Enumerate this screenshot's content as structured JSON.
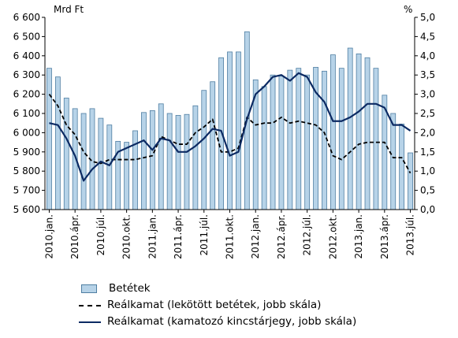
{
  "chart_data": {
    "type": "bar+line",
    "left_axis_unit": "Mrd Ft",
    "right_axis_unit": "%",
    "left_ylim": [
      5600,
      6600
    ],
    "left_ticks": [
      "5 600",
      "5 700",
      "5 800",
      "5 900",
      "6 000",
      "6 100",
      "6 200",
      "6 300",
      "6 400",
      "6 500",
      "6 600"
    ],
    "right_ylim": [
      0,
      5
    ],
    "right_ticks": [
      "0,0",
      "0,5",
      "1,0",
      "1,5",
      "2,0",
      "2,5",
      "3,0",
      "3,5",
      "4,0",
      "4,5",
      "5,0"
    ],
    "x_tick_labels": [
      "2010.jan.",
      "2010.ápr.",
      "2010.júl.",
      "2010.okt.",
      "2011.jan.",
      "2011.ápr.",
      "2011.júl.",
      "2011.okt.",
      "2012.jan.",
      "2012.ápr.",
      "2012.júl.",
      "2012.okt.",
      "2013.jan.",
      "2013.ápr.",
      "2013.júl."
    ],
    "months": 43,
    "series": [
      {
        "name": "Betétek",
        "type": "bar",
        "axis": "left",
        "color": "#b7d3e8",
        "values": [
          6335,
          6290,
          6180,
          6125,
          6100,
          6125,
          6075,
          6040,
          5955,
          5950,
          6010,
          6105,
          6115,
          6150,
          6100,
          6090,
          6095,
          6140,
          6220,
          6265,
          6390,
          6420,
          6420,
          6525,
          6275,
          6240,
          6300,
          6295,
          6325,
          6335,
          6300,
          6340,
          6320,
          6405,
          6335,
          6440,
          6410,
          6390,
          6335,
          6195,
          6100,
          6045,
          5895
        ]
      },
      {
        "name": "Reálkamat (lekötött betétek,  jobb skála)",
        "type": "line",
        "style": "dashed",
        "axis": "right",
        "color": "#000000",
        "values": [
          3.0,
          2.7,
          2.2,
          1.95,
          1.5,
          1.25,
          1.2,
          1.3,
          1.3,
          1.3,
          1.3,
          1.35,
          1.4,
          1.9,
          1.8,
          1.7,
          1.7,
          2.0,
          2.15,
          2.35,
          1.5,
          1.5,
          1.6,
          2.4,
          2.2,
          2.25,
          2.25,
          2.4,
          2.25,
          2.3,
          2.25,
          2.2,
          2.0,
          1.4,
          1.3,
          1.5,
          1.7,
          1.75,
          1.75,
          1.75,
          1.35,
          1.35,
          0.95
        ]
      },
      {
        "name": "Reálkamat (kamatozó kincstárjegy, jobb skála)",
        "type": "line",
        "style": "solid",
        "axis": "right",
        "color": "#0c2a63",
        "values": [
          2.25,
          2.2,
          1.85,
          1.4,
          0.75,
          1.05,
          1.25,
          1.15,
          1.5,
          1.6,
          1.7,
          1.8,
          1.55,
          1.85,
          1.8,
          1.5,
          1.5,
          1.65,
          1.85,
          2.1,
          2.05,
          1.4,
          1.5,
          2.35,
          3.0,
          3.2,
          3.45,
          3.5,
          3.35,
          3.55,
          3.45,
          3.05,
          2.8,
          2.3,
          2.3,
          2.4,
          2.55,
          2.75,
          2.75,
          2.65,
          2.2,
          2.2,
          2.05
        ]
      }
    ],
    "legend_position": "bottom",
    "grid": false
  }
}
